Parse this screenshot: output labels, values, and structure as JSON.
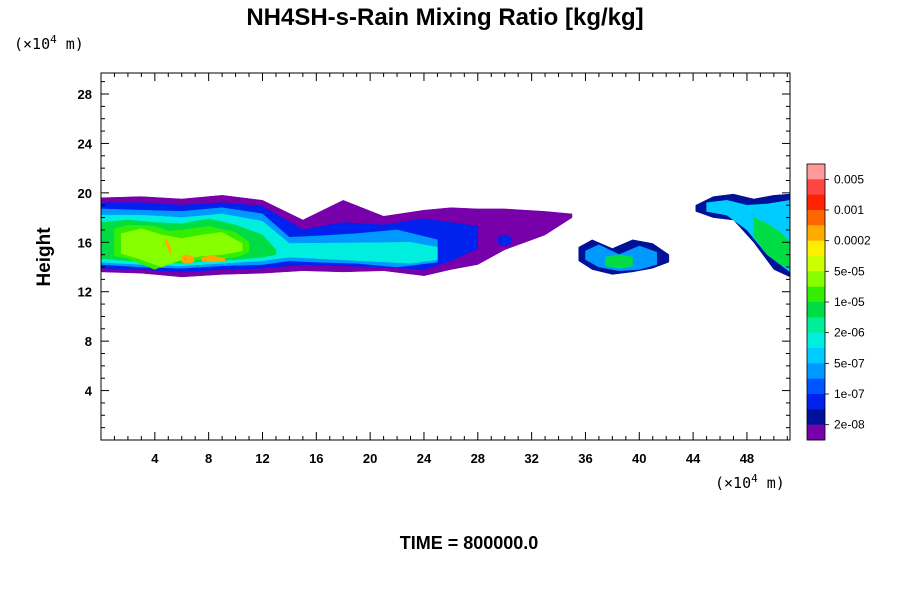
{
  "chart_data": {
    "type": "heatmap",
    "title": "NH4SH-s-Rain Mixing Ratio [kg/kg]",
    "ylabel": "Height",
    "y_unit_prefix": "(×10",
    "y_unit_exp": "4",
    "y_unit_suffix": " m)",
    "x_unit_prefix": "(×10",
    "x_unit_exp": "4",
    "x_unit_suffix": " m)",
    "xlim": [
      0,
      51.2
    ],
    "ylim": [
      0,
      29.7
    ],
    "xticks": [
      4,
      8,
      12,
      16,
      20,
      24,
      28,
      32,
      36,
      40,
      44,
      48
    ],
    "yticks": [
      4,
      8,
      12,
      16,
      20,
      24,
      28
    ],
    "footer": "TIME = 800000.0",
    "colorbar": {
      "labels": [
        "0.005",
        "0.001",
        "0.0002",
        "5e-05",
        "1e-05",
        "2e-06",
        "5e-07",
        "1e-07",
        "2e-08"
      ],
      "colors": [
        "#ff9999",
        "#ff4444",
        "#ff2200",
        "#ff6600",
        "#ffaa00",
        "#ffee00",
        "#ccff00",
        "#88ff00",
        "#33ee00",
        "#00dd44",
        "#00ee99",
        "#00eedd",
        "#00ccff",
        "#0099ff",
        "#0055ff",
        "#0022ee",
        "#001199",
        "#7700aa"
      ]
    },
    "regions": [
      {
        "name": "main-band",
        "x": [
          0,
          3,
          6,
          9,
          12,
          15,
          18,
          21,
          24,
          26,
          28,
          30,
          33,
          35
        ],
        "ytop": [
          19.6,
          19.7,
          19.5,
          19.8,
          19.4,
          17.8,
          19.4,
          18.1,
          18.6,
          18.8,
          18.7,
          18.7,
          18.5,
          18.3
        ],
        "ybot": [
          13.6,
          13.5,
          13.2,
          13.4,
          13.5,
          13.7,
          13.6,
          13.7,
          13.3,
          13.8,
          14.2,
          15.4,
          16.6,
          18.0
        ],
        "level": 0
      },
      {
        "name": "main-band",
        "x": [
          0,
          3,
          6,
          9,
          12,
          15,
          18,
          21,
          24,
          26,
          28
        ],
        "ytop": [
          19.2,
          19.2,
          19.0,
          19.2,
          18.9,
          17.0,
          17.6,
          17.4,
          17.9,
          17.6,
          17.3
        ],
        "ybot": [
          13.9,
          13.8,
          13.6,
          13.8,
          13.9,
          14.2,
          14.1,
          14.0,
          13.8,
          14.5,
          15.5
        ],
        "level": 2
      },
      {
        "name": "main-band",
        "x": [
          0,
          3,
          6,
          9,
          12,
          14,
          16,
          19,
          22,
          25
        ],
        "ytop": [
          18.7,
          18.6,
          18.5,
          18.8,
          18.3,
          16.4,
          16.5,
          16.7,
          17.0,
          16.2
        ],
        "ybot": [
          14.2,
          14.0,
          13.9,
          14.1,
          14.2,
          14.5,
          14.4,
          14.3,
          14.0,
          14.4
        ],
        "level": 4
      },
      {
        "name": "main-band",
        "x": [
          0,
          3,
          6,
          9,
          12,
          14,
          23,
          25
        ],
        "ytop": [
          18.2,
          18.2,
          18.0,
          18.3,
          17.7,
          15.9,
          16.0,
          15.6
        ],
        "ybot": [
          14.4,
          14.2,
          14.1,
          14.3,
          14.5,
          14.8,
          14.3,
          14.6
        ],
        "level": 6
      },
      {
        "name": "main-band",
        "x": [
          0,
          2,
          4,
          6,
          8,
          10,
          12,
          13
        ],
        "ytop": [
          17.6,
          17.8,
          17.6,
          17.5,
          17.9,
          17.4,
          16.6,
          15.4
        ],
        "ybot": [
          14.7,
          14.5,
          14.4,
          14.3,
          14.5,
          14.6,
          14.8,
          15.0
        ],
        "level": 8
      },
      {
        "name": "main-band",
        "x": [
          1,
          2,
          4,
          5,
          6,
          8,
          10,
          11
        ],
        "ytop": [
          17.1,
          17.4,
          17.3,
          16.9,
          17.0,
          17.3,
          16.8,
          16.0
        ],
        "ybot": [
          14.9,
          14.7,
          13.8,
          14.3,
          14.5,
          14.6,
          14.8,
          15.2
        ],
        "level": 9
      },
      {
        "name": "main-band",
        "x": [
          1.5,
          3,
          4.5,
          6,
          7.5,
          9,
          10.5
        ],
        "ytop": [
          16.7,
          17.1,
          16.6,
          16.3,
          16.6,
          16.8,
          15.9
        ],
        "ybot": [
          15.1,
          14.6,
          14.0,
          14.6,
          14.9,
          15.0,
          15.3
        ],
        "level": 10
      },
      {
        "name": "mid-cluster",
        "x": [
          6,
          6.4,
          6.9
        ],
        "ytop": [
          14.9,
          15.0,
          14.8
        ],
        "ybot": [
          14.4,
          14.3,
          14.4
        ],
        "level": 13
      },
      {
        "name": "mid-cluster",
        "x": [
          7.5,
          8.3,
          9.2
        ],
        "ytop": [
          14.8,
          14.9,
          14.7
        ],
        "ybot": [
          14.5,
          14.4,
          14.5
        ],
        "level": 13
      },
      {
        "name": "mid-cluster",
        "x": [
          4.8,
          5.0,
          5.2
        ],
        "ytop": [
          16.3,
          16.0,
          15.5
        ],
        "ybot": [
          15.9,
          15.4,
          15.0
        ],
        "level": 13
      },
      {
        "name": "right-patch",
        "x": [
          35.5,
          36.5,
          38,
          39.5,
          41,
          42.2
        ],
        "ytop": [
          15.6,
          16.2,
          15.5,
          16.2,
          15.9,
          15.0
        ],
        "ybot": [
          14.5,
          13.8,
          13.4,
          13.6,
          13.9,
          14.4
        ],
        "level": 1
      },
      {
        "name": "right-patch",
        "x": [
          36,
          37,
          38.5,
          40,
          41.3
        ],
        "ytop": [
          15.3,
          15.8,
          15.0,
          15.7,
          15.2
        ],
        "ybot": [
          14.6,
          14.0,
          13.7,
          13.8,
          14.2
        ],
        "level": 4
      },
      {
        "name": "right-patch",
        "x": [
          37.5,
          38.5,
          39.5
        ],
        "ytop": [
          14.8,
          15.0,
          14.8
        ],
        "ybot": [
          14.1,
          13.9,
          14.1
        ],
        "level": 8
      },
      {
        "name": "edge-patch",
        "x": [
          44.2,
          45.5,
          47,
          48.5,
          50,
          51.2
        ],
        "ytop": [
          19.0,
          19.7,
          19.9,
          19.5,
          19.8,
          19.9
        ],
        "ybot": [
          18.5,
          18.0,
          17.8,
          16.0,
          13.8,
          13.2
        ],
        "level": 1
      },
      {
        "name": "edge-patch",
        "x": [
          45,
          46.5,
          48,
          49.5,
          51.2
        ],
        "ytop": [
          19.2,
          19.4,
          19.0,
          19.1,
          19.4
        ],
        "ybot": [
          18.5,
          18.2,
          17.0,
          15.0,
          13.6
        ],
        "level": 5
      },
      {
        "name": "edge-patch",
        "x": [
          48.5,
          49.5,
          50.5,
          51.2
        ],
        "ytop": [
          18.0,
          17.5,
          16.8,
          16.0
        ],
        "ybot": [
          16.5,
          15.0,
          14.2,
          13.9
        ],
        "level": 8
      },
      {
        "name": "small-cell",
        "x": [
          29.5,
          30.0,
          30.5
        ],
        "ytop": [
          16.4,
          16.6,
          16.4
        ],
        "ybot": [
          15.9,
          15.7,
          15.9
        ],
        "level": 2
      }
    ]
  }
}
